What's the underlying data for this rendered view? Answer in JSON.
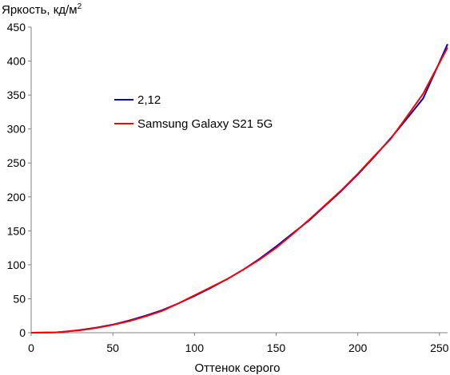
{
  "chart_data": {
    "type": "line",
    "ylabel": "Яркость, кд/м",
    "ylabel_superscript": "2",
    "xlabel": "Оттенок серого",
    "xlim": [
      0,
      255
    ],
    "ylim": [
      0,
      450
    ],
    "x_ticks": [
      "0",
      "50",
      "100",
      "150",
      "200",
      "250"
    ],
    "y_ticks": [
      "0",
      "50",
      "100",
      "150",
      "200",
      "250",
      "300",
      "350",
      "400",
      "450"
    ],
    "grid": false,
    "legend_position": "upper-left",
    "series": [
      {
        "name": "2,12",
        "color": "#0000c0",
        "x": [
          0,
          15,
          20,
          30,
          40,
          50,
          60,
          70,
          80,
          90,
          100,
          110,
          120,
          130,
          140,
          150,
          160,
          170,
          180,
          190,
          200,
          210,
          220,
          230,
          240,
          255
        ],
        "y": [
          0,
          0.5,
          1.5,
          4,
          7.5,
          12,
          18,
          25,
          33,
          43,
          54,
          66,
          79,
          93,
          109,
          127,
          146,
          165,
          187,
          209,
          233,
          259,
          286,
          315,
          345,
          425
        ]
      },
      {
        "name": "Samsung Galaxy S21 5G",
        "color": "#ff0000",
        "x": [
          0,
          15,
          20,
          30,
          40,
          50,
          60,
          70,
          80,
          90,
          100,
          110,
          120,
          130,
          140,
          150,
          160,
          170,
          180,
          190,
          200,
          210,
          220,
          230,
          240,
          255
        ],
        "y": [
          0,
          0.5,
          1.5,
          3.5,
          7,
          11.5,
          17,
          24,
          32,
          43,
          55,
          67,
          79,
          93,
          108,
          125,
          145,
          166,
          188,
          210,
          234,
          260,
          285,
          318,
          352,
          420
        ]
      }
    ]
  }
}
